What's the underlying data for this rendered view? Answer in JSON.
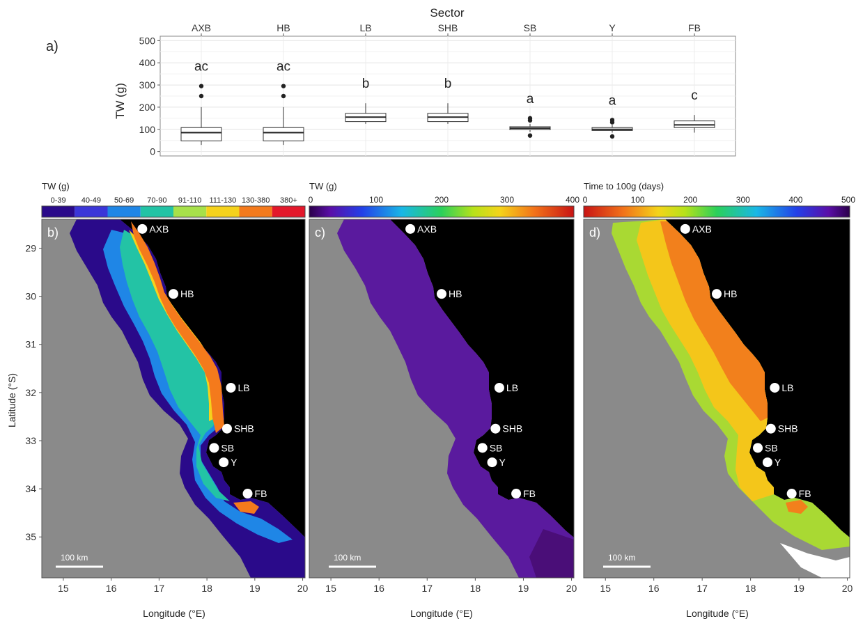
{
  "chart_data": {
    "type": "box",
    "panel_label": "a)",
    "top_axis_title": "Sector",
    "ylabel": "TW (g)",
    "ylim": [
      0,
      500
    ],
    "yticks": [
      0,
      100,
      200,
      300,
      400,
      500
    ],
    "categories": [
      "AXB",
      "HB",
      "LB",
      "SHB",
      "SB",
      "Y",
      "FB"
    ],
    "boxes": [
      {
        "q1": 48,
        "median": 85,
        "q3": 108,
        "whisker_low": 30,
        "whisker_high": 200,
        "outliers": [
          250,
          295
        ]
      },
      {
        "q1": 48,
        "median": 85,
        "q3": 108,
        "whisker_low": 30,
        "whisker_high": 200,
        "outliers": [
          250,
          295
        ]
      },
      {
        "q1": 135,
        "median": 155,
        "q3": 172,
        "whisker_low": 125,
        "whisker_high": 218,
        "outliers": []
      },
      {
        "q1": 135,
        "median": 155,
        "q3": 172,
        "whisker_low": 125,
        "whisker_high": 218,
        "outliers": []
      },
      {
        "q1": 98,
        "median": 105,
        "q3": 112,
        "whisker_low": 88,
        "whisker_high": 125,
        "outliers": [
          72,
          140,
          150
        ]
      },
      {
        "q1": 95,
        "median": 100,
        "q3": 108,
        "whisker_low": 85,
        "whisker_high": 120,
        "outliers": [
          68,
          132,
          142
        ]
      },
      {
        "q1": 108,
        "median": 120,
        "q3": 138,
        "whisker_low": 85,
        "whisker_high": 165,
        "outliers": []
      }
    ],
    "group_letters": [
      "ac",
      "ac",
      "b",
      "b",
      "a",
      "a",
      "c"
    ]
  },
  "maps": {
    "latitude_label": "Latitude (°S)",
    "longitude_label": "Longitude (°E)",
    "lat_ticks": [
      "29",
      "30",
      "31",
      "32",
      "33",
      "34",
      "35"
    ],
    "lon_ticks": [
      "15",
      "16",
      "17",
      "18",
      "19",
      "20"
    ],
    "scale_bar": "100 km",
    "sites": [
      {
        "name": "AXB",
        "lon": 16.65,
        "lat": 28.6
      },
      {
        "name": "HB",
        "lon": 17.3,
        "lat": 29.95
      },
      {
        "name": "LB",
        "lon": 18.5,
        "lat": 31.9
      },
      {
        "name": "SHB",
        "lon": 18.42,
        "lat": 32.75
      },
      {
        "name": "SB",
        "lon": 18.15,
        "lat": 33.15
      },
      {
        "name": "Y",
        "lon": 18.35,
        "lat": 33.45
      },
      {
        "name": "FB",
        "lon": 18.85,
        "lat": 34.1
      }
    ],
    "panels": [
      {
        "label": "b)",
        "legend_title": "TW (g)",
        "legend_bins": [
          "0-39",
          "40-49",
          "50-69",
          "70-90",
          "91-110",
          "111-130",
          "130-380",
          "380+"
        ],
        "legend_colors": [
          "#2a0a8a",
          "#3b36d8",
          "#1f86e6",
          "#23c3a5",
          "#a7e14a",
          "#f5d21c",
          "#f47a1c",
          "#e3182b"
        ]
      },
      {
        "label": "c)",
        "legend_title": "TW (g)",
        "legend_ticks": [
          "0",
          "100",
          "200",
          "300",
          "400"
        ]
      },
      {
        "label": "d)",
        "legend_title": "Time to 100g (days)",
        "legend_ticks": [
          "0",
          "100",
          "200",
          "300",
          "400",
          "500"
        ]
      }
    ]
  }
}
